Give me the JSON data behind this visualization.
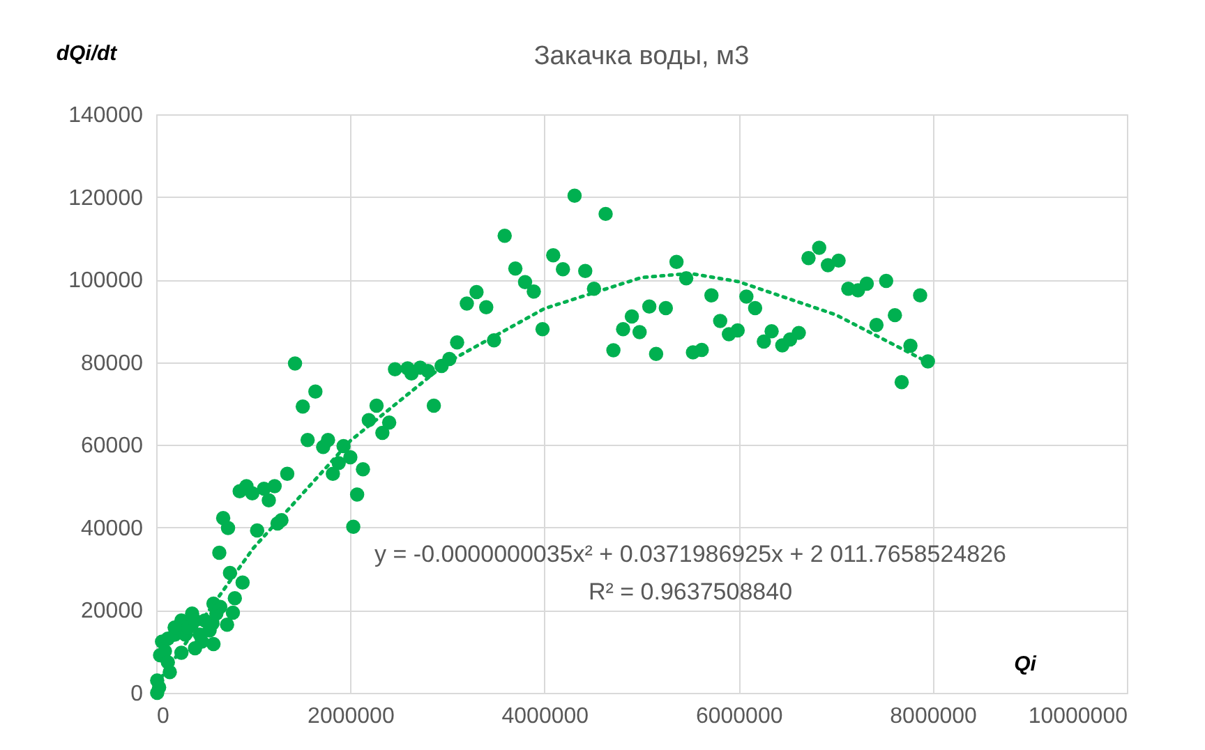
{
  "chart_data": {
    "type": "scatter",
    "title": "Закачка воды, м3",
    "xlabel": "Qi",
    "ylabel": "dQi/dt",
    "xlim": [
      0,
      10000000
    ],
    "xticks": [
      0,
      2000000,
      4000000,
      6000000,
      8000000,
      10000000
    ],
    "ylim": [
      0,
      140000
    ],
    "yticks": [
      0,
      20000,
      40000,
      60000,
      80000,
      100000,
      120000,
      140000
    ],
    "grid": true,
    "marker": "circle",
    "series": [
      {
        "color": "#00b050",
        "x": [
          10000,
          30000,
          10000,
          40000,
          60000,
          90000,
          120000,
          140000,
          190000,
          190000,
          260000,
          300000,
          330000,
          370000,
          400000,
          450000,
          470000,
          500000,
          550000,
          580000,
          620000,
          660000,
          730000,
          590000,
          400000,
          260000,
          120000,
          590000,
          790000,
          810000,
          890000,
          760000,
          650000,
          690000,
          740000,
          1040000,
          1250000,
          1290000,
          860000,
          930000,
          990000,
          1110000,
          1160000,
          1220000,
          1350000,
          1430000,
          1510000,
          1640000,
          1560000,
          1720000,
          1770000,
          1820000,
          1880000,
          1930000,
          2000000,
          2130000,
          2070000,
          2030000,
          2190000,
          2270000,
          2330000,
          2400000,
          2460000,
          2590000,
          2630000,
          2720000,
          2800000,
          2860000,
          2940000,
          3020000,
          3100000,
          3200000,
          3300000,
          3400000,
          3480000,
          3590000,
          3700000,
          3800000,
          3890000,
          3980000,
          4090000,
          4190000,
          4310000,
          4420000,
          4510000,
          4630000,
          4710000,
          4810000,
          4900000,
          4980000,
          5080000,
          5150000,
          5250000,
          5360000,
          5460000,
          5530000,
          5620000,
          5720000,
          5810000,
          5900000,
          5990000,
          6080000,
          6170000,
          6260000,
          6340000,
          6450000,
          6530000,
          6620000,
          6720000,
          6830000,
          6920000,
          7030000,
          7130000,
          7230000,
          7320000,
          7420000,
          7520000,
          7610000,
          7680000,
          7770000,
          7870000,
          7950000
        ],
        "values": [
          0,
          1300,
          3000,
          9100,
          12400,
          10100,
          7400,
          5000,
          14100,
          15800,
          17500,
          14100,
          15800,
          19200,
          17500,
          14100,
          12400,
          17500,
          15100,
          16800,
          19200,
          20800,
          16500,
          11800,
          10800,
          9700,
          13100,
          21600,
          19400,
          22900,
          26700,
          29000,
          33900,
          42300,
          39900,
          39300,
          41000,
          41800,
          48800,
          50000,
          48300,
          49400,
          46600,
          50000,
          53000,
          79700,
          69300,
          72900,
          61200,
          59500,
          61200,
          53000,
          55600,
          59700,
          57000,
          54100,
          48000,
          40200,
          66000,
          69500,
          62900,
          65400,
          78300,
          78500,
          77300,
          78700,
          77900,
          69500,
          79100,
          80800,
          84800,
          94200,
          97000,
          93300,
          85300,
          110600,
          102700,
          99400,
          97100,
          88000,
          105900,
          102500,
          120300,
          102100,
          97800,
          115900,
          82900,
          88000,
          91100,
          87300,
          93500,
          82000,
          93100,
          104300,
          100300,
          82400,
          83000,
          96200,
          90000,
          86800,
          87700,
          95900,
          93100,
          85000,
          87500,
          84100,
          85500,
          87100,
          105200,
          107700,
          103500,
          104600,
          97800,
          97400,
          99000,
          89000,
          99700,
          91400,
          75200,
          84000,
          96200,
          80200
        ]
      },
      {
        "type": "line",
        "color": "#00b050",
        "line_style": "dotted",
        "marker": "none",
        "x": [
          0,
          1000000,
          2000000,
          3000000,
          4000000,
          5000000,
          5500000,
          6000000,
          7000000,
          7950000
        ],
        "values": [
          2000,
          35000,
          61000,
          80000,
          93000,
          100500,
          101500,
          99500,
          91500,
          80000
        ]
      }
    ],
    "annotations": [
      "y = -0.0000000035x² + 0.0371986925x + 2 011.7658524826",
      "R² = 0.9637508840"
    ]
  }
}
